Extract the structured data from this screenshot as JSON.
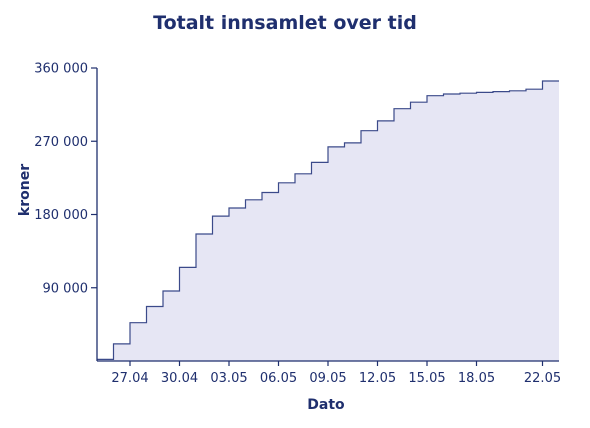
{
  "chart_data": {
    "type": "area",
    "step": true,
    "title": "Totalt innsamlet over tid",
    "xlabel": "Dato",
    "ylabel": "kroner",
    "ylim": [
      0,
      360000
    ],
    "yticks": [
      90000,
      180000,
      270000,
      360000
    ],
    "ytick_labels": [
      "90 000",
      "180 000",
      "270 000",
      "360 000"
    ],
    "xticks": [
      "27.04",
      "30.04",
      "03.05",
      "06.05",
      "09.05",
      "12.05",
      "15.05",
      "18.05",
      "22.05"
    ],
    "xlim": [
      "2024-04-25",
      "2024-05-22"
    ],
    "grid": false,
    "x": [
      "2024-04-25",
      "2024-04-26",
      "2024-04-27",
      "2024-04-28",
      "2024-04-29",
      "2024-04-30",
      "2024-05-01",
      "2024-05-02",
      "2024-05-03",
      "2024-05-04",
      "2024-05-05",
      "2024-05-06",
      "2024-05-07",
      "2024-05-08",
      "2024-05-09",
      "2024-05-10",
      "2024-05-11",
      "2024-05-12",
      "2024-05-13",
      "2024-05-14",
      "2024-05-15",
      "2024-05-16",
      "2024-05-17",
      "2024-05-18",
      "2024-05-19",
      "2024-05-20",
      "2024-05-21",
      "2024-05-22"
    ],
    "series": [
      {
        "values": [
          2000,
          21000,
          47000,
          67000,
          86000,
          115000,
          156000,
          178000,
          188000,
          198000,
          207000,
          219000,
          230000,
          244000,
          263000,
          268000,
          283000,
          295000,
          310000,
          318000,
          326000,
          328000,
          329000,
          330000,
          331000,
          332000,
          334000,
          344000
        ],
        "color": "#3b4a8a",
        "fill": "#e6e6f4"
      }
    ]
  }
}
